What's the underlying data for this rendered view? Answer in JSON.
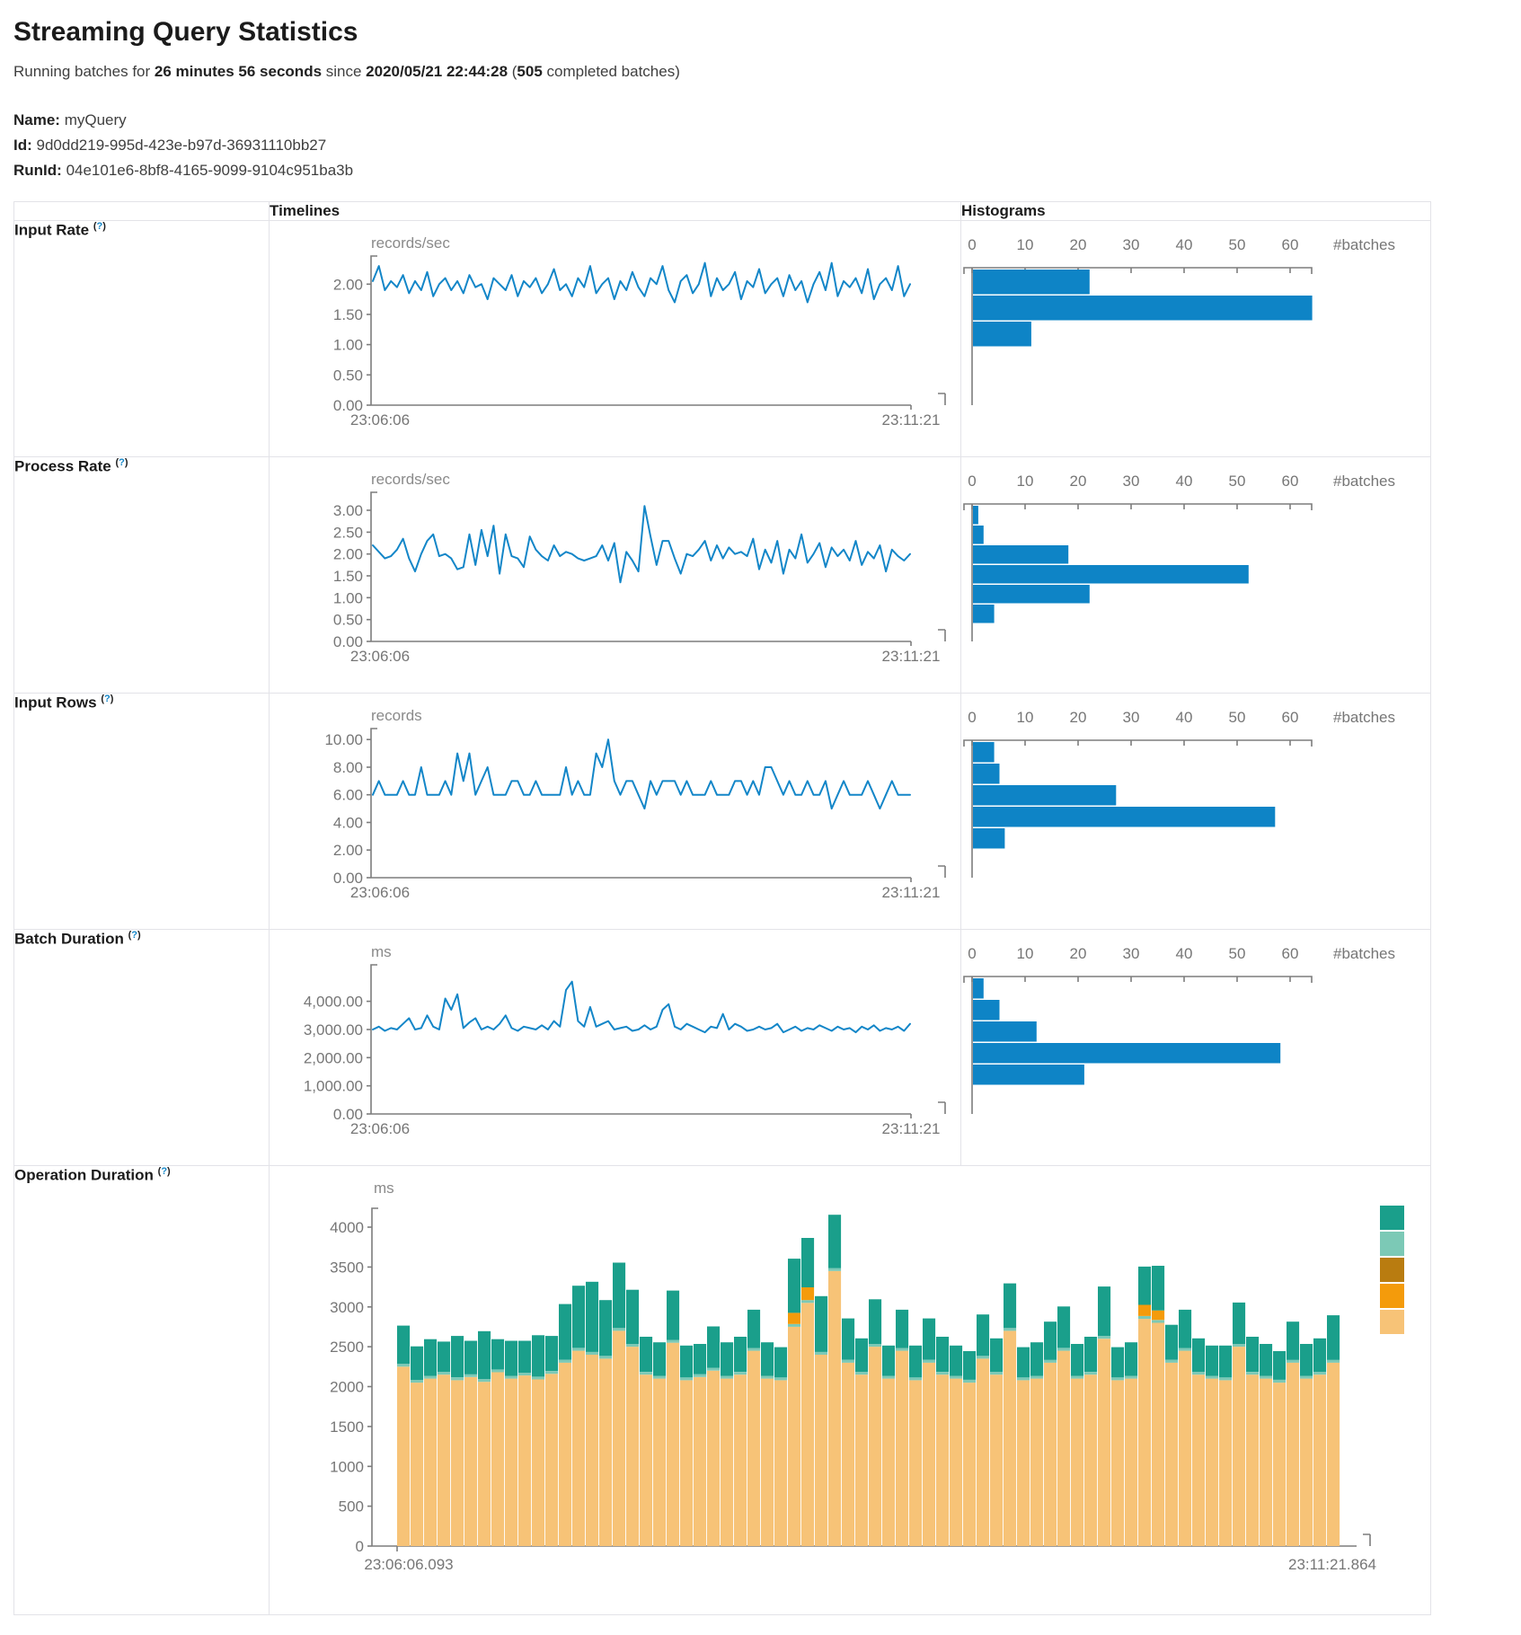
{
  "page": {
    "title": "Streaming Query Statistics",
    "subtitle": {
      "prefix": "Running batches for ",
      "duration": "26 minutes 56 seconds",
      "mid": " since ",
      "timestamp": "2020/05/21 22:44:28",
      "paren_open": " (",
      "completed_count": "505",
      "suffix": " completed batches)"
    },
    "meta": {
      "name_label": "Name:",
      "name_value": "myQuery",
      "id_label": "Id:",
      "id_value": "9d0dd219-995d-423e-b97d-36931110bb27",
      "runid_label": "RunId:",
      "runid_value": "04e101e6-8bf8-4165-9099-9104c951ba3b"
    }
  },
  "table": {
    "header": {
      "timelines": "Timelines",
      "histograms": "Histograms"
    },
    "help_open": "(",
    "help_q": "?",
    "help_close": ")",
    "rows": [
      {
        "label": "Input Rate"
      },
      {
        "label": "Process Rate"
      },
      {
        "label": "Input Rows"
      },
      {
        "label": "Batch Duration"
      },
      {
        "label": "Operation Duration"
      }
    ]
  },
  "colors": {
    "line_blue": "#1386c8",
    "hist_blue": "#0e84c6",
    "axis_gray": "#7d7d7d",
    "teal": "#1a9f8b",
    "light_teal": "#7cc9b6",
    "dark_orange": "#b97c10",
    "orange": "#f49b0b",
    "tan": "#f7c377"
  },
  "chart_data": [
    {
      "id": "input_rate",
      "type": "line",
      "unit": "records/sec",
      "x_start": "23:06:06",
      "x_end": "23:11:21",
      "ymax": 2.42,
      "ytick_values": [
        2.0,
        1.5,
        1.0,
        0.5,
        0
      ],
      "ytick_labels": [
        "2.00",
        "1.50",
        "1.00",
        "0.50",
        "0.00"
      ],
      "values": [
        2.05,
        2.3,
        1.9,
        2.05,
        1.95,
        2.15,
        1.85,
        2.05,
        1.9,
        2.2,
        1.8,
        2.0,
        2.1,
        1.9,
        2.05,
        1.85,
        2.15,
        1.95,
        2.0,
        1.75,
        2.1,
        2.0,
        1.9,
        2.15,
        1.8,
        2.05,
        1.95,
        2.1,
        1.85,
        2.0,
        2.25,
        1.9,
        2.0,
        1.8,
        2.1,
        1.95,
        2.3,
        1.85,
        2.0,
        2.1,
        1.75,
        2.05,
        1.9,
        2.2,
        1.95,
        1.8,
        2.1,
        2.0,
        2.3,
        1.9,
        1.7,
        2.05,
        2.15,
        1.85,
        2.0,
        2.35,
        1.8,
        2.1,
        1.9,
        2.0,
        2.2,
        1.75,
        2.05,
        1.95,
        2.25,
        1.85,
        2.0,
        2.1,
        1.8,
        2.15,
        1.9,
        2.05,
        1.7,
        2.0,
        2.2,
        1.9,
        2.35,
        1.8,
        2.05,
        1.95,
        2.1,
        1.85,
        2.25,
        1.75,
        2.0,
        2.1,
        1.9,
        2.3,
        1.8,
        2.0
      ],
      "histogram": {
        "label": "#batches",
        "ticks": [
          0,
          10,
          20,
          30,
          40,
          50,
          60
        ],
        "bins": [
          22,
          64,
          11
        ],
        "bin_height": 29
      }
    },
    {
      "id": "process_rate",
      "type": "line",
      "unit": "records/sec",
      "x_start": "23:06:06",
      "x_end": "23:11:21",
      "ymax": 3.35,
      "ytick_values": [
        3.0,
        2.5,
        2.0,
        1.5,
        1.0,
        0.5,
        0
      ],
      "ytick_labels": [
        "3.00",
        "2.50",
        "2.00",
        "1.50",
        "1.00",
        "0.50",
        "0.00"
      ],
      "values": [
        2.2,
        2.05,
        1.9,
        1.95,
        2.1,
        2.35,
        1.9,
        1.6,
        2.0,
        2.3,
        2.45,
        1.95,
        2.0,
        1.9,
        1.65,
        1.7,
        2.45,
        1.75,
        2.55,
        1.95,
        2.65,
        1.55,
        2.45,
        1.95,
        1.9,
        1.7,
        2.4,
        2.1,
        1.95,
        1.85,
        2.2,
        1.95,
        2.05,
        2.0,
        1.9,
        1.85,
        1.9,
        1.95,
        2.2,
        1.85,
        2.25,
        1.35,
        2.05,
        1.85,
        1.6,
        3.1,
        2.4,
        1.75,
        2.3,
        2.3,
        1.9,
        1.55,
        2.0,
        1.95,
        2.1,
        2.3,
        1.85,
        2.2,
        1.9,
        2.15,
        2.0,
        2.05,
        1.95,
        2.35,
        1.65,
        2.1,
        1.8,
        2.3,
        1.55,
        2.1,
        1.9,
        2.45,
        1.8,
        2.0,
        2.25,
        1.7,
        2.15,
        1.95,
        2.1,
        1.85,
        2.3,
        1.75,
        2.05,
        1.9,
        2.2,
        1.6,
        2.1,
        1.95,
        1.85,
        2.0
      ],
      "histogram": {
        "label": "#batches",
        "ticks": [
          0,
          10,
          20,
          30,
          40,
          50,
          60
        ],
        "bins": [
          1,
          2,
          18,
          52,
          22,
          4
        ],
        "bin_height": 22
      }
    },
    {
      "id": "input_rows",
      "type": "line",
      "unit": "records",
      "x_start": "23:06:06",
      "x_end": "23:11:21",
      "ymax": 10.6,
      "ytick_values": [
        10,
        8,
        6,
        4,
        2,
        0
      ],
      "ytick_labels": [
        "10.00",
        "8.00",
        "6.00",
        "4.00",
        "2.00",
        "0.00"
      ],
      "values": [
        6,
        7,
        6,
        6,
        6,
        7,
        6,
        6,
        8,
        6,
        6,
        6,
        7,
        6,
        9,
        7,
        9,
        6,
        7,
        8,
        6,
        6,
        6,
        7,
        7,
        6,
        6,
        7,
        6,
        6,
        6,
        6,
        8,
        6,
        7,
        6,
        6,
        9,
        8,
        10,
        7,
        6,
        7,
        7,
        6,
        5,
        7,
        6,
        7,
        7,
        7,
        6,
        7,
        6,
        6,
        6,
        7,
        6,
        6,
        6,
        7,
        7,
        6,
        7,
        6,
        8,
        8,
        7,
        6,
        7,
        6,
        6,
        7,
        6,
        6,
        7,
        5,
        6,
        7,
        6,
        6,
        6,
        7,
        6,
        5,
        6,
        7,
        6,
        6,
        6
      ],
      "histogram": {
        "label": "#batches",
        "ticks": [
          0,
          10,
          20,
          30,
          40,
          50,
          60
        ],
        "bins": [
          4,
          5,
          27,
          57,
          6
        ],
        "bin_height": 24
      }
    },
    {
      "id": "batch_duration",
      "type": "line",
      "unit": "ms",
      "x_start": "23:06:06",
      "x_end": "23:11:21",
      "ymax": 5200,
      "ytick_values": [
        4000,
        3000,
        2000,
        1000,
        0
      ],
      "ytick_labels": [
        "4,000.00",
        "3,000.00",
        "2,000.00",
        "1,000.00",
        "0.00"
      ],
      "values": [
        3000,
        3100,
        2950,
        3050,
        3000,
        3200,
        3400,
        3000,
        3050,
        3500,
        3100,
        3000,
        4100,
        3700,
        4250,
        3050,
        3250,
        3400,
        3000,
        3100,
        3000,
        3200,
        3500,
        3050,
        2950,
        3100,
        3050,
        3000,
        3150,
        3000,
        3300,
        3100,
        4400,
        4700,
        3300,
        3100,
        3800,
        3100,
        3200,
        3300,
        3000,
        3050,
        3100,
        2950,
        3000,
        3150,
        3000,
        3100,
        3700,
        3900,
        3100,
        3000,
        3200,
        3100,
        3000,
        2900,
        3100,
        3050,
        3550,
        3000,
        3200,
        3100,
        2950,
        3000,
        3100,
        3000,
        3050,
        3200,
        2900,
        3000,
        3100,
        2950,
        3050,
        3000,
        3150,
        3050,
        2950,
        3100,
        3000,
        3050,
        2900,
        3100,
        3000,
        3150,
        2950,
        3050,
        3000,
        3100,
        2950,
        3200
      ],
      "histogram": {
        "label": "#batches",
        "ticks": [
          0,
          10,
          20,
          30,
          40,
          50,
          60
        ],
        "bins": [
          2,
          5,
          12,
          58,
          21
        ],
        "bin_height": 24
      }
    },
    {
      "id": "operation_duration",
      "type": "stacked-bar",
      "unit": "ms",
      "x_start": "23:06:06.093",
      "x_end": "23:11:21.864",
      "ymax": 4200,
      "ytick_values": [
        4000,
        3500,
        3000,
        2500,
        2000,
        1500,
        1000,
        500,
        0
      ],
      "ytick_labels": [
        "4000",
        "3500",
        "3000",
        "2500",
        "2000",
        "1500",
        "1000",
        "500",
        "0"
      ],
      "bar_count": 70,
      "legend_colors": [
        "#1a9f8b",
        "#7cc9b6",
        "#b97c10",
        "#f49b0b",
        "#f7c377"
      ],
      "series": [
        {
          "color": "#f7c377",
          "values": [
            2250,
            2050,
            2100,
            2150,
            2080,
            2120,
            2060,
            2180,
            2100,
            2140,
            2090,
            2160,
            2300,
            2450,
            2400,
            2350,
            2700,
            2500,
            2150,
            2100,
            2550,
            2080,
            2120,
            2200,
            2100,
            2150,
            2450,
            2100,
            2080,
            2750,
            3050,
            2400,
            3450,
            2300,
            2150,
            2500,
            2100,
            2450,
            2080,
            2300,
            2150,
            2100,
            2050,
            2350,
            2150,
            2700,
            2080,
            2100,
            2300,
            2450,
            2100,
            2150,
            2600,
            2080,
            2100,
            2850,
            2800,
            2300,
            2450,
            2150,
            2100,
            2080,
            2500,
            2150,
            2100,
            2050,
            2300,
            2100,
            2150,
            2300
          ]
        },
        {
          "color": "#7cc9b6",
          "constant": 35
        },
        {
          "color": "#f49b0b",
          "values": [
            0,
            0,
            0,
            0,
            0,
            0,
            0,
            0,
            0,
            0,
            0,
            0,
            0,
            0,
            0,
            0,
            0,
            0,
            0,
            0,
            0,
            0,
            0,
            0,
            0,
            0,
            0,
            0,
            0,
            140,
            160,
            0,
            0,
            0,
            0,
            0,
            0,
            0,
            0,
            0,
            0,
            0,
            0,
            0,
            0,
            0,
            0,
            0,
            0,
            0,
            0,
            0,
            0,
            0,
            0,
            140,
            120,
            0,
            0,
            0,
            0,
            0,
            0,
            0,
            0,
            0,
            0,
            0,
            0,
            0
          ]
        },
        {
          "color": "#1a9f8b",
          "values": [
            480,
            420,
            460,
            380,
            520,
            420,
            600,
            380,
            440,
            400,
            520,
            440,
            700,
            780,
            880,
            700,
            820,
            680,
            440,
            420,
            620,
            400,
            380,
            520,
            420,
            440,
            480,
            420,
            380,
            680,
            620,
            700,
            670,
            520,
            420,
            560,
            380,
            480,
            400,
            520,
            440,
            380,
            360,
            520,
            420,
            560,
            380,
            420,
            480,
            520,
            400,
            440,
            620,
            380,
            420,
            480,
            560,
            440,
            480,
            420,
            380,
            400,
            520,
            440,
            400,
            360,
            480,
            400,
            420,
            560
          ]
        }
      ]
    }
  ]
}
